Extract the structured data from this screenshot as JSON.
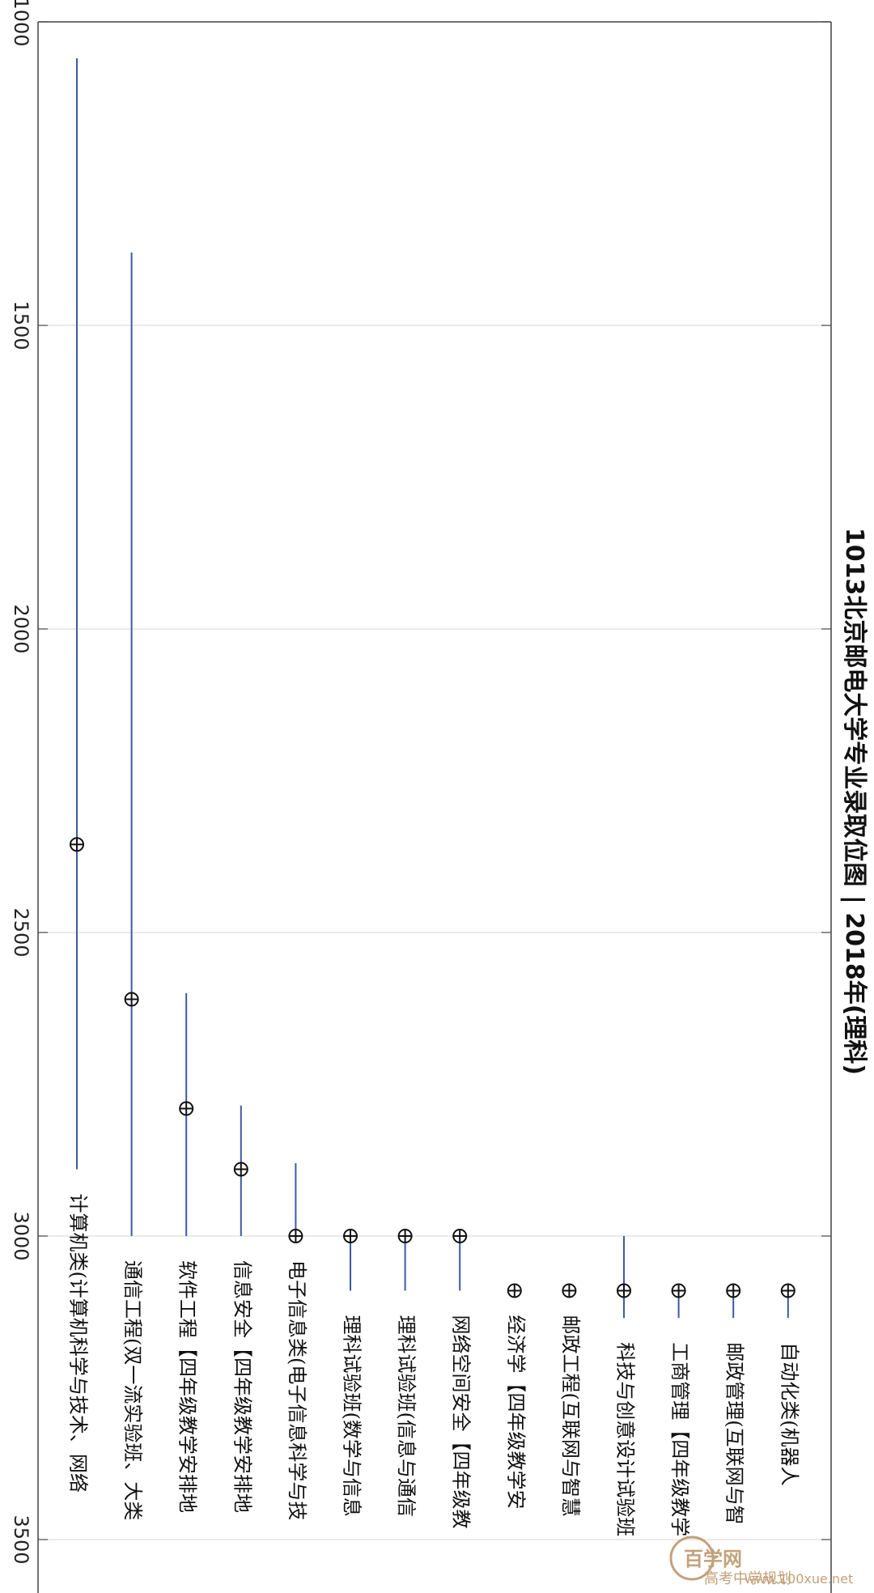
{
  "chart_data": {
    "type": "range-marker",
    "title": "1013北京邮电大学专业录取位图 | 2018年(理科)",
    "ylim": [
      1000,
      3500
    ],
    "yticks": [
      1000,
      1500,
      2000,
      2500,
      3000,
      3500
    ],
    "grid": true,
    "categories": [
      "计算机类(计算机科学与技术、网络",
      "通信工程(双一流实验班、大类",
      "软件工程【四年级教学安排地",
      "信息安全【四年级教学安排地",
      "电子信息类(电子信息科学与技",
      "理科试验班(数学与信息",
      "理科试验班(信息与通信",
      "网络空间安全【四年级教",
      "经济学【四年级教学安",
      "邮政工程(互联网与智慧",
      "科技与创意设计试验班",
      "工商管理【四年级教学",
      "邮政管理(互联网与智",
      "自动化类(机器人"
    ],
    "min": [
      1060,
      1380,
      2600,
      2785,
      2880,
      3000,
      3000,
      3000,
      3090,
      3090,
      3000,
      3090,
      3090,
      3090
    ],
    "max": [
      2890,
      3000,
      3000,
      3000,
      3000,
      3090,
      3090,
      3090,
      3090,
      3090,
      3135,
      3135,
      3135,
      3135
    ],
    "marker": [
      2355,
      2610,
      2790,
      2890,
      3000,
      3000,
      3000,
      3000,
      3090,
      3090,
      3090,
      3090,
      3090,
      3090
    ]
  },
  "watermark": {
    "brand": "百学网",
    "site": "www.100xue.net",
    "account": "高考中学规划",
    "color": "#b58a5a"
  }
}
